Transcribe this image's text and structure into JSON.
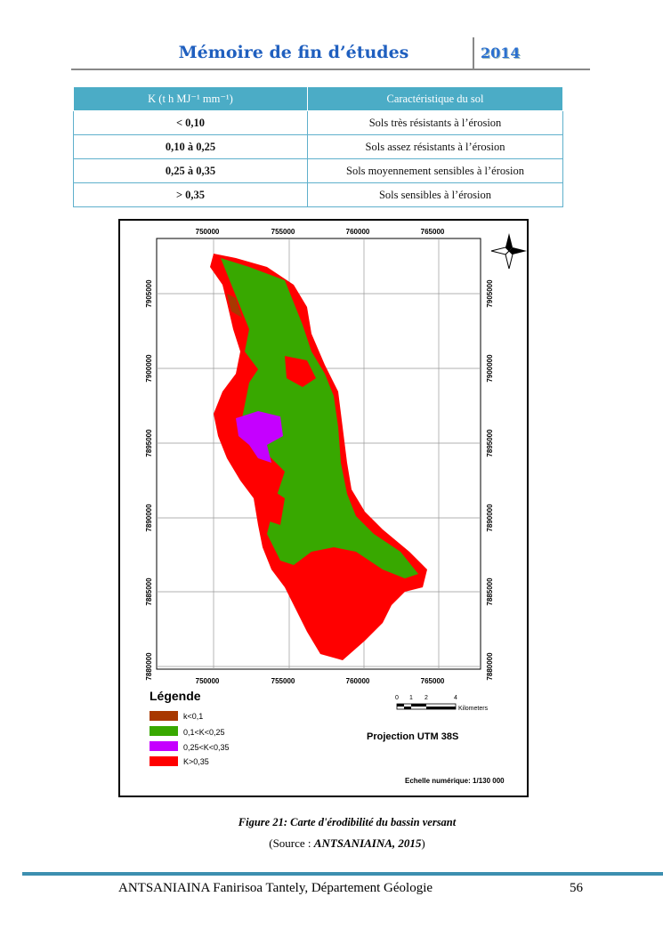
{
  "header": {
    "title": "Mémoire de fin d’études",
    "year": "2014"
  },
  "table": {
    "header": [
      "K (t h MJ⁻¹ mm⁻¹)",
      "Caractéristique du sol"
    ],
    "rows": [
      [
        "< 0,10",
        "Sols très résistants à l’érosion"
      ],
      [
        "0,10 à 0,25",
        "Sols assez résistants à l’érosion"
      ],
      [
        "0,25 à 0,35",
        "Sols moyennement sensibles à l’érosion"
      ],
      [
        "> 0,35",
        "Sols sensibles à l’érosion"
      ]
    ]
  },
  "map": {
    "x_labels": [
      "750000",
      "755000",
      "760000",
      "765000"
    ],
    "y_labels": [
      "7905000",
      "7900000",
      "7895000",
      "7890000",
      "7885000",
      "7880000"
    ],
    "legend_title": "Légende",
    "legend_items": [
      "k<0,1",
      "0,1<K<0,25",
      "0,25<K<0,35",
      "K>0,35"
    ],
    "scale_labels": [
      "0",
      "1",
      "2",
      "4"
    ],
    "scale_unit": "Kilometers",
    "projection": "Projection UTM 38S",
    "scale_text": "Echelle numérique: 1/130 000"
  },
  "caption": {
    "figure": "Figure 21: Carte d'érodibilité  du bassin versant",
    "source_prefix": "(Source : ",
    "source_ref": "ANTSANIAINA, 2015",
    "source_suffix": ")"
  },
  "footer": {
    "author": "ANTSANIAINA Fanirisoa Tantely, Département Géologie",
    "page": "56"
  }
}
